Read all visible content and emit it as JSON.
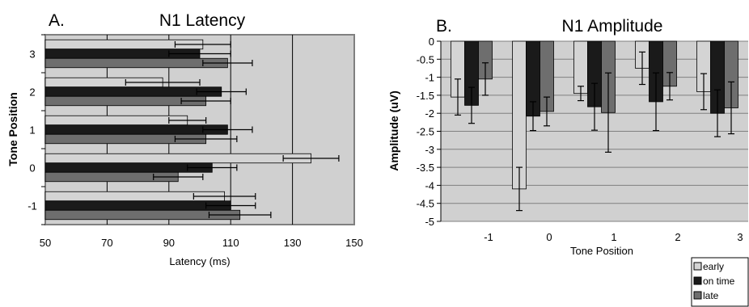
{
  "chart_data": [
    {
      "panel_label": "A.",
      "type": "bar",
      "orientation": "horizontal",
      "title": "N1 Latency",
      "xlabel": "Latency (ms)",
      "ylabel": "Tone Position",
      "categories": [
        "3",
        "2",
        "1",
        "0",
        "-1"
      ],
      "xlim": [
        50,
        150
      ],
      "xticks": [
        "50",
        "70",
        "90",
        "110",
        "130",
        "150"
      ],
      "grid": true,
      "series": [
        {
          "key": "early",
          "color": "#d4d4d4",
          "values": [
            101,
            88,
            96,
            136,
            108
          ],
          "errors": [
            9,
            12,
            6,
            9,
            10
          ]
        },
        {
          "key": "on_time",
          "color": "#1a1a1a",
          "values": [
            100,
            107,
            109,
            104,
            110
          ],
          "errors": [
            10,
            8,
            8,
            8,
            8
          ]
        },
        {
          "key": "late",
          "color": "#6e6e6e",
          "values": [
            109,
            102,
            102,
            93,
            113
          ],
          "errors": [
            8,
            8,
            10,
            8,
            10
          ]
        }
      ]
    },
    {
      "panel_label": "B.",
      "type": "bar",
      "orientation": "vertical",
      "title": "N1 Amplitude",
      "xlabel": "Tone Position",
      "ylabel": "Amplitude (uV)",
      "categories": [
        "-1",
        "0",
        "1",
        "2",
        "3"
      ],
      "ylim": [
        -5,
        0
      ],
      "yticks": [
        "0",
        "-0.5",
        "-1",
        "-1.5",
        "-2",
        "-2.5",
        "-3",
        "-3.5",
        "-4",
        "-4.5",
        "-5"
      ],
      "grid": true,
      "series": [
        {
          "key": "early",
          "color": "#d4d4d4",
          "values": [
            -1.55,
            -4.1,
            -1.45,
            -0.75,
            -1.4
          ],
          "errors": [
            0.5,
            0.6,
            0.2,
            0.45,
            0.5
          ]
        },
        {
          "key": "on_time",
          "color": "#1a1a1a",
          "values": [
            -1.78,
            -2.08,
            -1.82,
            -1.68,
            -2.0
          ],
          "errors": [
            0.5,
            0.4,
            0.65,
            0.8,
            0.65
          ]
        },
        {
          "key": "late",
          "color": "#6e6e6e",
          "values": [
            -1.05,
            -1.95,
            -1.98,
            -1.25,
            -1.85
          ],
          "errors": [
            0.45,
            0.4,
            1.1,
            0.38,
            0.72
          ]
        }
      ]
    }
  ],
  "legend": {
    "placement": "bottom-right",
    "items": [
      {
        "label": "early",
        "color": "#d4d4d4"
      },
      {
        "label": "on time",
        "color": "#1a1a1a"
      },
      {
        "label": "late",
        "color": "#6e6e6e"
      }
    ]
  }
}
